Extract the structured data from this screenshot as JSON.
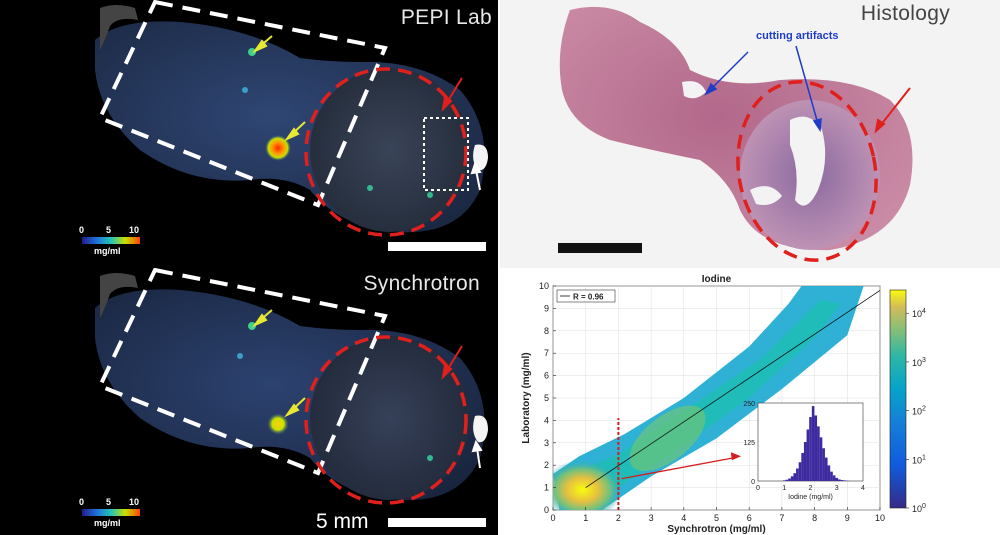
{
  "panels": {
    "lab": {
      "title": "PEPI Lab",
      "colorbar": {
        "ticks": [
          "0",
          "5",
          "10"
        ],
        "unit": "mg/ml"
      }
    },
    "synchrotron": {
      "title": "Synchrotron",
      "colorbar": {
        "ticks": [
          "0",
          "5",
          "10"
        ],
        "unit": "mg/ml"
      },
      "scalebar_label": "5 mm"
    },
    "histology": {
      "title": "Histology",
      "annotation": "cutting artifacts"
    }
  },
  "chart_data": [
    {
      "type": "heatmap",
      "title": "Iodine",
      "xlabel": "Synchrotron (mg/ml)",
      "ylabel": "Laboratory (mg/ml)",
      "xlim": [
        0,
        10
      ],
      "ylim": [
        0,
        10
      ],
      "x_ticks": [
        "0",
        "1",
        "2",
        "3",
        "4",
        "5",
        "6",
        "7",
        "8",
        "9",
        "10"
      ],
      "y_ticks": [
        "0",
        "1",
        "2",
        "3",
        "4",
        "5",
        "6",
        "7",
        "8",
        "9",
        "10"
      ],
      "legend": {
        "label": "R = 0.96",
        "position": "top-left"
      },
      "fit_line": {
        "x": [
          1,
          10
        ],
        "y": [
          1,
          9.8
        ]
      },
      "threshold_line_x": 2,
      "colorbar": {
        "scale": "log",
        "ticks": [
          "10^0",
          "10^1",
          "10^2",
          "10^3",
          "10^4"
        ],
        "range": [
          1,
          30000
        ]
      },
      "grid": true
    },
    {
      "type": "bar",
      "title": "",
      "xlabel": "Iodine (mg/ml)",
      "ylabel": "",
      "xlim": [
        0,
        4
      ],
      "ylim": [
        0,
        250
      ],
      "x_ticks": [
        "0",
        "1",
        "2",
        "3",
        "4"
      ],
      "y_ticks": [
        "0",
        "125",
        "250"
      ],
      "x": [
        1.0,
        1.1,
        1.2,
        1.3,
        1.4,
        1.5,
        1.6,
        1.7,
        1.8,
        1.9,
        2.0,
        2.1,
        2.2,
        2.3,
        2.4,
        2.5,
        2.6,
        2.7,
        2.8,
        2.9,
        3.0,
        3.1,
        3.2,
        3.3,
        3.4
      ],
      "values": [
        2,
        4,
        8,
        15,
        25,
        40,
        60,
        90,
        125,
        165,
        205,
        240,
        210,
        175,
        140,
        105,
        75,
        50,
        30,
        18,
        10,
        5,
        3,
        2,
        1
      ]
    }
  ]
}
